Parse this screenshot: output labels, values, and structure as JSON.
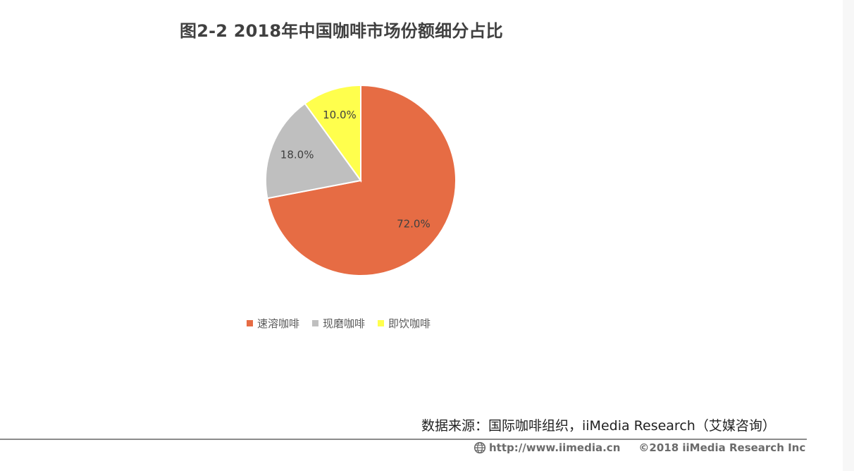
{
  "header": {
    "title": "图2-2 2018年中国咖啡市场份额细分占比"
  },
  "chart_data": {
    "type": "pie",
    "title": "图2-2 2018年中国咖啡市场份额细分占比",
    "categories": [
      "速溶咖啡",
      "现磨咖啡",
      "即饮咖啡"
    ],
    "values": [
      72.0,
      18.0,
      10.0
    ],
    "labels": [
      "72.0%",
      "18.0%",
      "10.0%"
    ],
    "colors": [
      "#E66C44",
      "#BFBFBF",
      "#FFFF4D"
    ],
    "legend_position": "bottom"
  },
  "source": {
    "text": "数据来源：国际咖啡组织，iiMedia Research（艾媒咨询）"
  },
  "footer": {
    "url": "http://www.iimedia.cn",
    "copyright": "©2018  iiMedia Research  Inc",
    "icon": "globe-icon"
  }
}
